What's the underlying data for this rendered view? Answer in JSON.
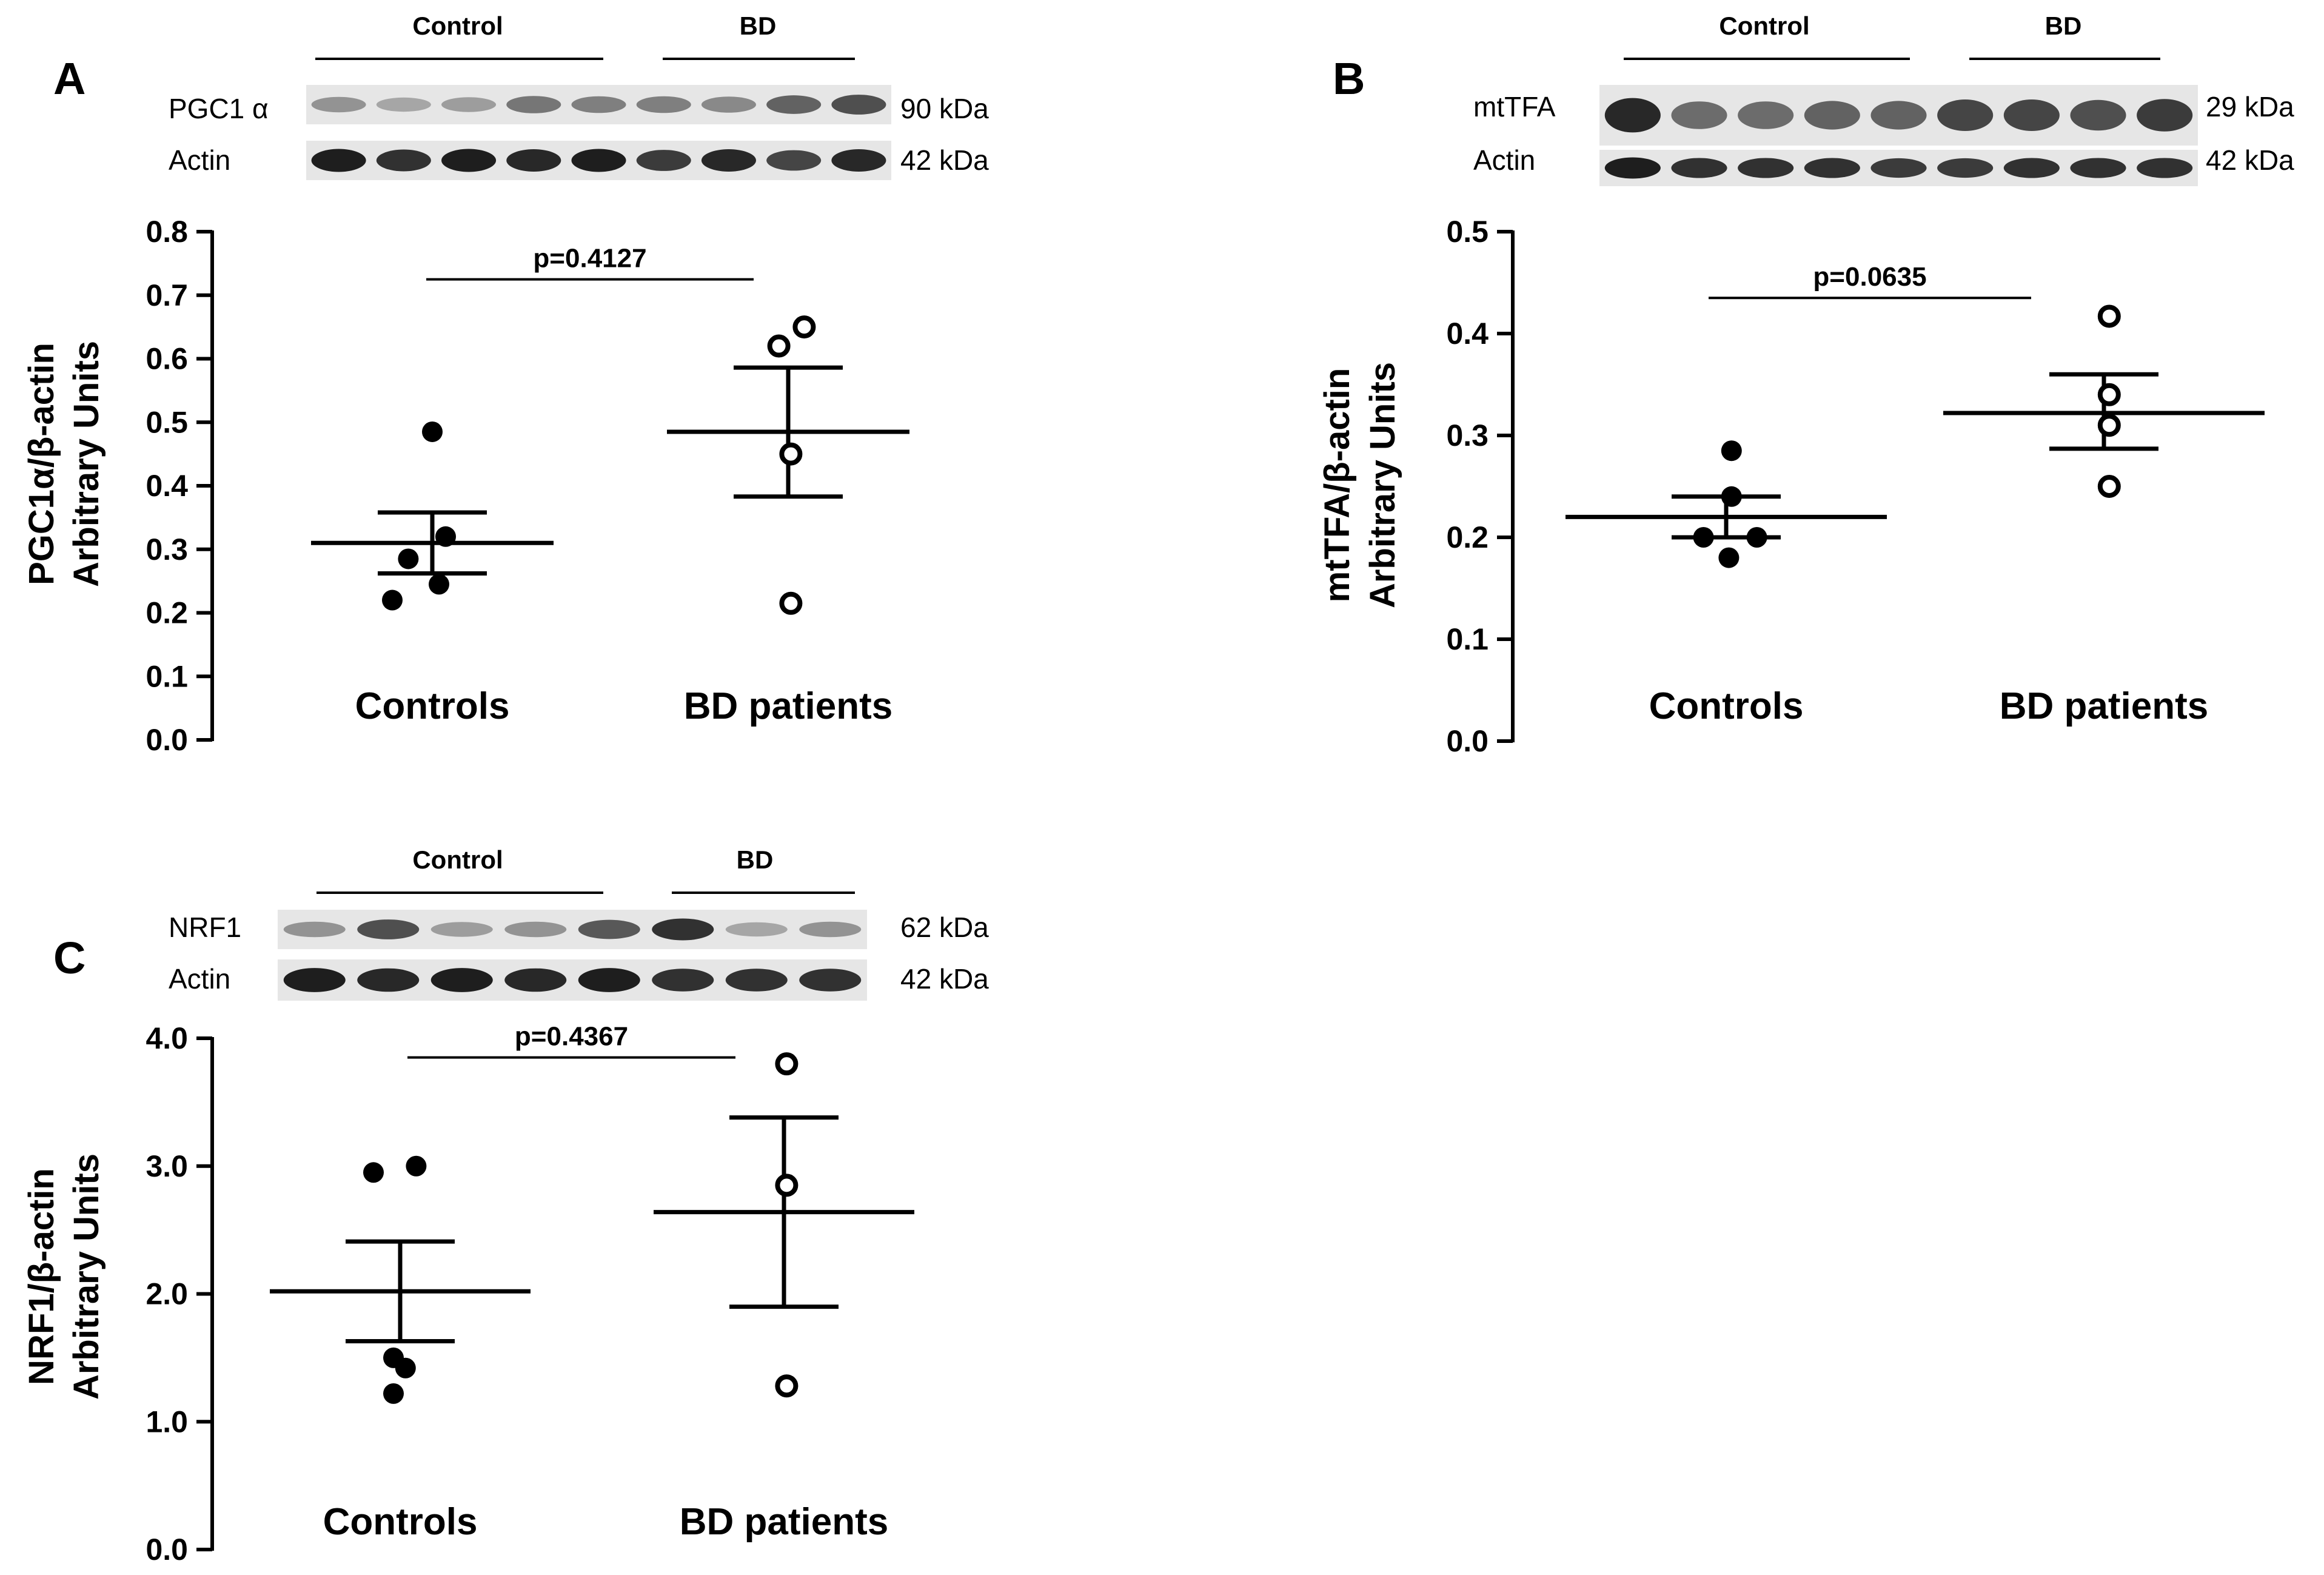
{
  "panels": [
    {
      "letter": "A",
      "blot": {
        "group_labels": [
          "Control",
          "BD"
        ],
        "rows": [
          {
            "name": "PGC1 α",
            "size": "90 kDa",
            "intensity": [
              0.35,
              0.25,
              0.3,
              0.5,
              0.45,
              0.45,
              0.4,
              0.6,
              0.7
            ]
          },
          {
            "name": "Actin",
            "size": "42 kDa",
            "intensity": [
              0.95,
              0.85,
              0.95,
              0.9,
              0.95,
              0.8,
              0.9,
              0.75,
              0.9
            ]
          }
        ]
      },
      "chart_data": {
        "type": "scatter",
        "ylabel": [
          "PGC1α/β-actin",
          "Arbitrary Units"
        ],
        "ylim": [
          0,
          0.8
        ],
        "yticks": [
          "0.0",
          "0.1",
          "0.2",
          "0.3",
          "0.4",
          "0.5",
          "0.6",
          "0.7",
          "0.8"
        ],
        "ytick_values": [
          0,
          0.1,
          0.2,
          0.3,
          0.4,
          0.5,
          0.6,
          0.7,
          0.8
        ],
        "categories": [
          "Controls",
          "BD patients"
        ],
        "series": [
          {
            "points": [
              0.485,
              0.32,
              0.285,
              0.22,
              0.245
            ],
            "mean": 0.31,
            "sem_low": 0.262,
            "sem_high": 0.358,
            "marker": "filled"
          },
          {
            "points": [
              0.65,
              0.62,
              0.45,
              0.215
            ],
            "mean": 0.485,
            "sem_low": 0.383,
            "sem_high": 0.586,
            "marker": "open"
          }
        ],
        "annotation": "p=0.4127",
        "annotation_y": 0.725
      }
    },
    {
      "letter": "B",
      "blot": {
        "group_labels": [
          "Control",
          "BD"
        ],
        "rows": [
          {
            "name": "mtTFA",
            "size": "29 kDa",
            "intensity": [
              0.9,
              0.55,
              0.55,
              0.6,
              0.6,
              0.75,
              0.75,
              0.7,
              0.8
            ]
          },
          {
            "name": "Actin",
            "size": "42 kDa",
            "intensity": [
              0.95,
              0.85,
              0.85,
              0.85,
              0.8,
              0.8,
              0.85,
              0.85,
              0.85
            ]
          }
        ]
      },
      "chart_data": {
        "type": "scatter",
        "ylabel": [
          "mtTFA/β-actin",
          "Arbitrary Units"
        ],
        "ylim": [
          0,
          0.5
        ],
        "yticks": [
          "0.0",
          "0.1",
          "0.2",
          "0.3",
          "0.4",
          "0.5"
        ],
        "ytick_values": [
          0,
          0.1,
          0.2,
          0.3,
          0.4,
          0.5
        ],
        "categories": [
          "Controls",
          "BD patients"
        ],
        "series": [
          {
            "points": [
              0.285,
              0.24,
              0.2,
              0.2,
              0.18
            ],
            "mean": 0.22,
            "sem_low": 0.2,
            "sem_high": 0.24,
            "marker": "filled"
          },
          {
            "points": [
              0.417,
              0.34,
              0.31,
              0.25
            ],
            "mean": 0.322,
            "sem_low": 0.287,
            "sem_high": 0.36,
            "marker": "open"
          }
        ],
        "annotation": "p=0.0635",
        "annotation_y": 0.435
      }
    },
    {
      "letter": "C",
      "blot": {
        "group_labels": [
          "Control",
          "BD"
        ],
        "rows": [
          {
            "name": "NRF1",
            "size": "62 kDa",
            "intensity": [
              0.35,
              0.7,
              0.3,
              0.35,
              0.65,
              0.85,
              0.25,
              0.35
            ]
          },
          {
            "name": "Actin",
            "size": "42 kDa",
            "intensity": [
              0.95,
              0.9,
              0.95,
              0.9,
              0.95,
              0.85,
              0.85,
              0.85
            ]
          }
        ]
      },
      "chart_data": {
        "type": "scatter",
        "ylabel": [
          "NRF1/β-actin",
          "Arbitrary Units"
        ],
        "ylim": [
          0,
          4
        ],
        "yticks": [
          "0.0",
          "1.0",
          "2.0",
          "3.0",
          "4.0"
        ],
        "ytick_values": [
          0,
          1,
          2,
          3,
          4
        ],
        "categories": [
          "Controls",
          "BD patients"
        ],
        "series": [
          {
            "points": [
              2.95,
              3.0,
              1.5,
              1.42,
              1.22
            ],
            "mean": 2.02,
            "sem_low": 1.63,
            "sem_high": 2.41,
            "marker": "filled"
          },
          {
            "points": [
              3.8,
              2.85,
              1.28
            ],
            "mean": 2.64,
            "sem_low": 1.9,
            "sem_high": 3.38,
            "marker": "open"
          }
        ],
        "annotation": "p=0.4367",
        "annotation_y": 3.85
      }
    }
  ]
}
